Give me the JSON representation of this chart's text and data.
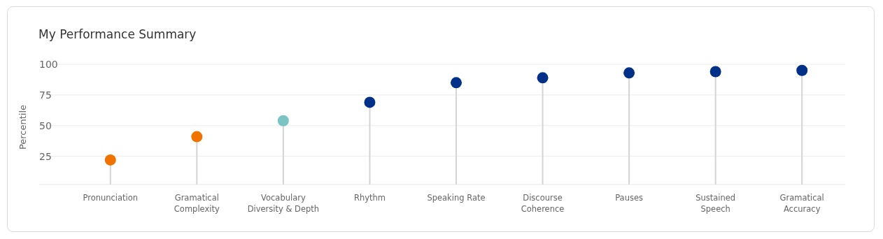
{
  "chart_data": {
    "type": "lollipop",
    "title": "My Performance Summary",
    "ylabel": "Percentile",
    "categories": [
      "Pronunciation",
      "Gramatical Complexity",
      "Vocabulary Diversity & Depth",
      "Rhythm",
      "Speaking Rate",
      "Discourse Coherence",
      "Pauses",
      "Sustained Speech",
      "Gramatical Accuracy"
    ],
    "values": [
      22,
      41,
      54,
      69,
      85,
      89,
      93,
      94,
      95
    ],
    "colors": [
      "#f07300",
      "#f07300",
      "#7cc4c4",
      "#003087",
      "#003087",
      "#003087",
      "#003087",
      "#003087",
      "#003087"
    ],
    "ylim": [
      2,
      100
    ],
    "yticks": [
      25,
      50,
      75,
      100
    ],
    "grid": "y",
    "marker": "circle"
  }
}
